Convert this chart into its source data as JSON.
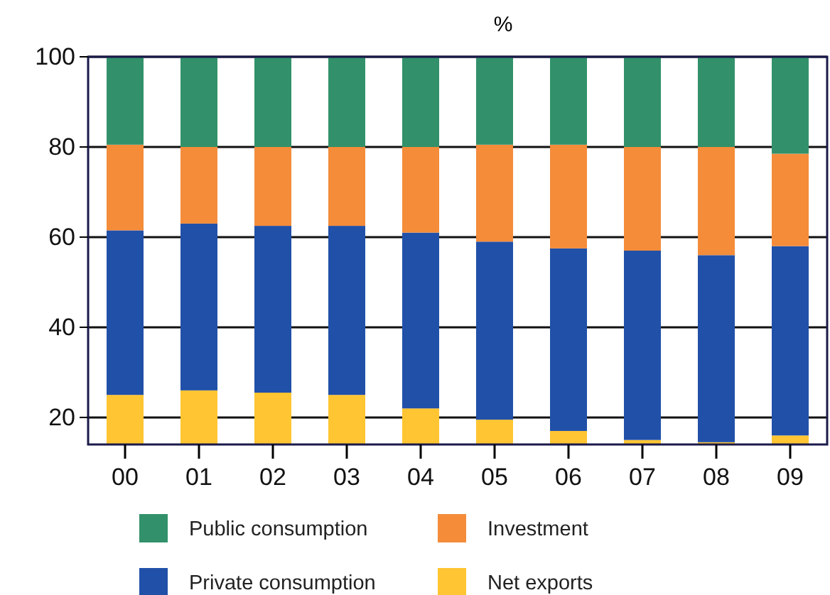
{
  "chart_data": {
    "type": "bar",
    "title": "%",
    "stacked": true,
    "categories": [
      "00",
      "01",
      "02",
      "03",
      "04",
      "05",
      "06",
      "07",
      "08",
      "09"
    ],
    "series": [
      {
        "name": "Net exports",
        "color": "#ffc532",
        "values": [
          25,
          26,
          25.5,
          25,
          22,
          19.5,
          17,
          15,
          14.5,
          16
        ]
      },
      {
        "name": "Private consumption",
        "color": "#2150a8",
        "values": [
          36.5,
          37,
          37,
          37.5,
          39,
          39.5,
          40.5,
          42,
          41.5,
          42
        ]
      },
      {
        "name": "Investment",
        "color": "#f48c3a",
        "values": [
          19,
          17,
          17.5,
          17.5,
          19,
          21.5,
          23,
          23,
          24,
          20.5
        ]
      },
      {
        "name": "Public consumption",
        "color": "#32916a",
        "values": [
          19.5,
          20,
          20,
          20,
          20,
          19.5,
          19.5,
          20,
          20,
          21.5
        ]
      }
    ],
    "ylim": [
      14,
      100
    ],
    "yticks": [
      20,
      40,
      60,
      80,
      100
    ],
    "grid": "y",
    "legend": "bottom"
  }
}
